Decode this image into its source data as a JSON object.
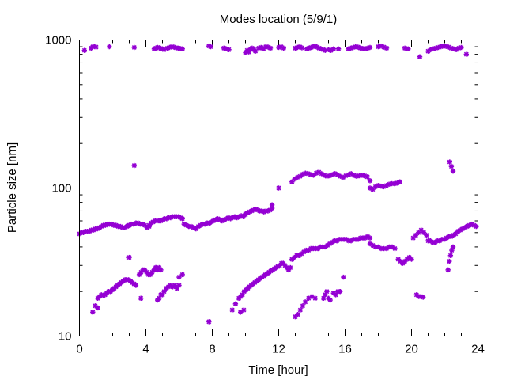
{
  "chart_data": {
    "type": "scatter",
    "title": "Modes location (5/9/1)",
    "xlabel": "Time [hour]",
    "ylabel": "Particle size [nm]",
    "xlim": [
      0,
      24
    ],
    "ylim": [
      10,
      1000
    ],
    "yscale": "log",
    "grid": false,
    "legend": "none",
    "marker_color": "#9400D3",
    "xticks": [
      0,
      4,
      8,
      12,
      16,
      20,
      24
    ],
    "xtick_labels": [
      "0",
      "4",
      "8",
      "12",
      "16",
      "20",
      "24"
    ],
    "yticks": [
      10,
      100,
      1000
    ],
    "ytick_labels": [
      "10",
      "100",
      "1000"
    ],
    "series": [
      {
        "name": "",
        "segments": [
          {
            "x0": 0.3,
            "x1": 0.3,
            "n": 1,
            "y": [
              850
            ]
          },
          {
            "x0": 0.7,
            "x1": 1.0,
            "n": 4,
            "y": [
              880,
              900,
              905,
              895
            ]
          },
          {
            "x0": 1.8,
            "x1": 1.8,
            "n": 1,
            "y": [
              900
            ]
          },
          {
            "x0": 3.3,
            "x1": 3.3,
            "n": 1,
            "y": [
              890
            ]
          },
          {
            "x0": 4.5,
            "x1": 5.1,
            "n": 7,
            "y": [
              870,
              880,
              890,
              885,
              875,
              870,
              860
            ]
          },
          {
            "x0": 5.3,
            "x1": 6.2,
            "n": 8,
            "y": [
              880,
              890,
              900,
              895,
              885,
              880,
              875,
              870
            ]
          },
          {
            "x0": 7.8,
            "x1": 7.9,
            "n": 2,
            "y": [
              910,
              900
            ]
          },
          {
            "x0": 8.7,
            "x1": 9.0,
            "n": 3,
            "y": [
              880,
              870,
              860
            ]
          },
          {
            "x0": 10.0,
            "x1": 10.6,
            "n": 7,
            "y": [
              820,
              850,
              830,
              870,
              880,
              860,
              840
            ]
          },
          {
            "x0": 10.8,
            "x1": 11.5,
            "n": 6,
            "y": [
              880,
              890,
              870,
              900,
              895,
              880
            ]
          },
          {
            "x0": 12.0,
            "x1": 12.3,
            "n": 3,
            "y": [
              890,
              900,
              880
            ]
          },
          {
            "x0": 13.0,
            "x1": 13.4,
            "n": 4,
            "y": [
              880,
              890,
              900,
              885
            ]
          },
          {
            "x0": 13.7,
            "x1": 14.8,
            "n": 10,
            "y": [
              870,
              880,
              890,
              900,
              910,
              895,
              880,
              870,
              860,
              850
            ]
          },
          {
            "x0": 15.0,
            "x1": 15.3,
            "n": 3,
            "y": [
              860,
              850,
              870
            ]
          },
          {
            "x0": 15.6,
            "x1": 15.6,
            "n": 1,
            "y": [
              870
            ]
          },
          {
            "x0": 16.2,
            "x1": 17.5,
            "n": 10,
            "y": [
              870,
              880,
              890,
              900,
              895,
              880,
              875,
              870,
              880,
              890
            ]
          },
          {
            "x0": 18.0,
            "x1": 18.5,
            "n": 4,
            "y": [
              900,
              910,
              895,
              880
            ]
          },
          {
            "x0": 19.6,
            "x1": 19.8,
            "n": 2,
            "y": [
              880,
              870
            ]
          },
          {
            "x0": 20.5,
            "x1": 20.5,
            "n": 1,
            "y": [
              770
            ]
          },
          {
            "x0": 21.0,
            "x1": 23.0,
            "n": 14,
            "y": [
              840,
              860,
              870,
              880,
              890,
              900,
              910,
              905,
              895,
              880,
              870,
              860,
              880,
              890
            ]
          },
          {
            "x0": 23.3,
            "x1": 23.3,
            "n": 1,
            "y": [
              800
            ]
          }
        ]
      },
      {
        "name": "",
        "segments": [
          {
            "x0": 0.0,
            "x1": 1.8,
            "n": 16,
            "y": [
              49,
              50,
              50,
              51,
              51,
              51,
              52,
              52,
              53,
              53,
              54,
              55,
              56,
              56,
              57,
              57
            ]
          },
          {
            "x0": 1.8,
            "x1": 3.0,
            "n": 10,
            "y": [
              57,
              57,
              56,
              56,
              55,
              55,
              54,
              54,
              55,
              56
            ]
          },
          {
            "x0": 3.0,
            "x1": 4.2,
            "n": 10,
            "y": [
              56,
              57,
              57,
              58,
              58,
              57,
              57,
              56,
              54,
              55
            ]
          },
          {
            "x0": 4.2,
            "x1": 6.2,
            "n": 18,
            "y": [
              56,
              58,
              59,
              60,
              60,
              60,
              60,
              61,
              62,
              62,
              63,
              63,
              64,
              64,
              64,
              64,
              63,
              62
            ]
          },
          {
            "x0": 6.3,
            "x1": 7.3,
            "n": 8,
            "y": [
              57,
              56,
              55,
              55,
              54,
              53,
              55,
              56
            ]
          },
          {
            "x0": 7.3,
            "x1": 10.0,
            "n": 22,
            "y": [
              56,
              57,
              57,
              58,
              58,
              59,
              60,
              61,
              62,
              61,
              60,
              61,
              62,
              63,
              62,
              63,
              64,
              63,
              64,
              65,
              64,
              66
            ]
          },
          {
            "x0": 10.0,
            "x1": 11.6,
            "n": 14,
            "y": [
              67,
              68,
              69,
              70,
              71,
              72,
              71,
              70,
              70,
              69,
              70,
              70,
              71,
              73
            ]
          },
          {
            "x0": 11.6,
            "x1": 11.6,
            "n": 1,
            "y": [
              77
            ]
          },
          {
            "x0": 12.0,
            "x1": 12.0,
            "n": 1,
            "y": [
              100
            ]
          },
          {
            "x0": 12.8,
            "x1": 17.5,
            "n": 30,
            "y": [
              110,
              115,
              118,
              120,
              124,
              126,
              125,
              123,
              122,
              126,
              128,
              125,
              122,
              120,
              121,
              123,
              125,
              123,
              120,
              118,
              121,
              123,
              125,
              122,
              120,
              121,
              122,
              121,
              119,
              112
            ]
          },
          {
            "x0": 17.5,
            "x1": 19.3,
            "n": 12,
            "y": [
              100,
              98,
              102,
              104,
              103,
              102,
              104,
              106,
              107,
              107,
              108,
              110
            ]
          }
        ]
      },
      {
        "name": "",
        "segments": [
          {
            "x0": 3.3,
            "x1": 3.3,
            "n": 1,
            "y": [
              142
            ]
          },
          {
            "x0": 22.3,
            "x1": 22.5,
            "n": 3,
            "y": [
              150,
              140,
              130
            ]
          }
        ]
      },
      {
        "name": "",
        "segments": [
          {
            "x0": 12.8,
            "x1": 17.5,
            "n": 34,
            "y": [
              33,
              34,
              35,
              35,
              36,
              37,
              38,
              38,
              39,
              39,
              39,
              39,
              40,
              40,
              40,
              41,
              42,
              43,
              44,
              44,
              45,
              45,
              45,
              45,
              44,
              44,
              45,
              45,
              45,
              46,
              46,
              46,
              47,
              46
            ]
          },
          {
            "x0": 17.5,
            "x1": 19.0,
            "n": 10,
            "y": [
              42,
              41,
              40,
              40,
              39,
              39,
              39,
              40,
              40,
              39
            ]
          },
          {
            "x0": 19.2,
            "x1": 20.0,
            "n": 7,
            "y": [
              33,
              32,
              31,
              32,
              33,
              34,
              33
            ]
          },
          {
            "x0": 20.1,
            "x1": 20.9,
            "n": 6,
            "y": [
              46,
              48,
              50,
              52,
              50,
              48
            ]
          },
          {
            "x0": 21.0,
            "x1": 23.9,
            "n": 22,
            "y": [
              44,
              44,
              43,
              43,
              44,
              44,
              45,
              45,
              46,
              47,
              47,
              48,
              49,
              51,
              52,
              53,
              54,
              55,
              56,
              57,
              56,
              55
            ]
          }
        ]
      },
      {
        "name": "",
        "segments": [
          {
            "x0": 0.8,
            "x1": 1.1,
            "n": 3,
            "y": [
              14.5,
              16,
              15.5
            ]
          },
          {
            "x0": 1.1,
            "x1": 3.4,
            "n": 22,
            "y": [
              18,
              18.5,
              19,
              18.8,
              19,
              19.5,
              20,
              20,
              20.5,
              21,
              21.5,
              22,
              22.5,
              23,
              23.5,
              24,
              24,
              24,
              23.5,
              23,
              22.5,
              22
            ]
          },
          {
            "x0": 3.0,
            "x1": 3.0,
            "n": 1,
            "y": [
              34
            ]
          },
          {
            "x0": 3.6,
            "x1": 4.6,
            "n": 10,
            "y": [
              26,
              27,
              28,
              28,
              27,
              26,
              26,
              27,
              28,
              29
            ]
          },
          {
            "x0": 4.5,
            "x1": 4.9,
            "n": 5,
            "y": [
              28,
              29,
              28,
              29,
              28
            ]
          },
          {
            "x0": 4.7,
            "x1": 5.0,
            "n": 4,
            "y": [
              17.5,
              18,
              19,
              19
            ]
          },
          {
            "x0": 5.1,
            "x1": 6.0,
            "n": 8,
            "y": [
              20,
              21,
              21.5,
              22,
              21.5,
              22,
              21,
              22
            ]
          },
          {
            "x0": 6.0,
            "x1": 6.2,
            "n": 2,
            "y": [
              25,
              26
            ]
          },
          {
            "x0": 9.6,
            "x1": 12.7,
            "n": 30,
            "y": [
              18,
              18.5,
              19,
              20,
              20.5,
              21,
              21.5,
              22,
              22.5,
              23,
              23.5,
              24,
              24.5,
              25,
              25.5,
              26,
              26.5,
              27,
              27.5,
              28,
              28.5,
              29,
              29.5,
              30,
              31,
              31,
              30,
              29,
              28,
              29
            ]
          },
          {
            "x0": 13.0,
            "x1": 13.6,
            "n": 5,
            "y": [
              13.5,
              14,
              15,
              16,
              17
            ]
          },
          {
            "x0": 13.8,
            "x1": 14.2,
            "n": 3,
            "y": [
              18,
              18.5,
              18
            ]
          },
          {
            "x0": 14.7,
            "x1": 15.1,
            "n": 5,
            "y": [
              18,
              19,
              20,
              18,
              17.5
            ]
          },
          {
            "x0": 15.3,
            "x1": 15.7,
            "n": 4,
            "y": [
              19.5,
              19,
              20,
              20
            ]
          },
          {
            "x0": 15.9,
            "x1": 15.9,
            "n": 1,
            "y": [
              25
            ]
          },
          {
            "x0": 20.3,
            "x1": 20.7,
            "n": 4,
            "y": [
              19,
              18.5,
              18.5,
              18.3
            ]
          },
          {
            "x0": 22.2,
            "x1": 22.5,
            "n": 5,
            "y": [
              28,
              32,
              35,
              38,
              40
            ]
          }
        ]
      },
      {
        "name": "",
        "segments": [
          {
            "x0": 3.7,
            "x1": 3.7,
            "n": 1,
            "y": [
              18
            ]
          },
          {
            "x0": 7.8,
            "x1": 7.8,
            "n": 1,
            "y": [
              12.5
            ]
          },
          {
            "x0": 9.2,
            "x1": 9.4,
            "n": 2,
            "y": [
              15,
              16.5
            ]
          },
          {
            "x0": 9.7,
            "x1": 9.9,
            "n": 2,
            "y": [
              14.5,
              15
            ]
          }
        ]
      }
    ]
  }
}
